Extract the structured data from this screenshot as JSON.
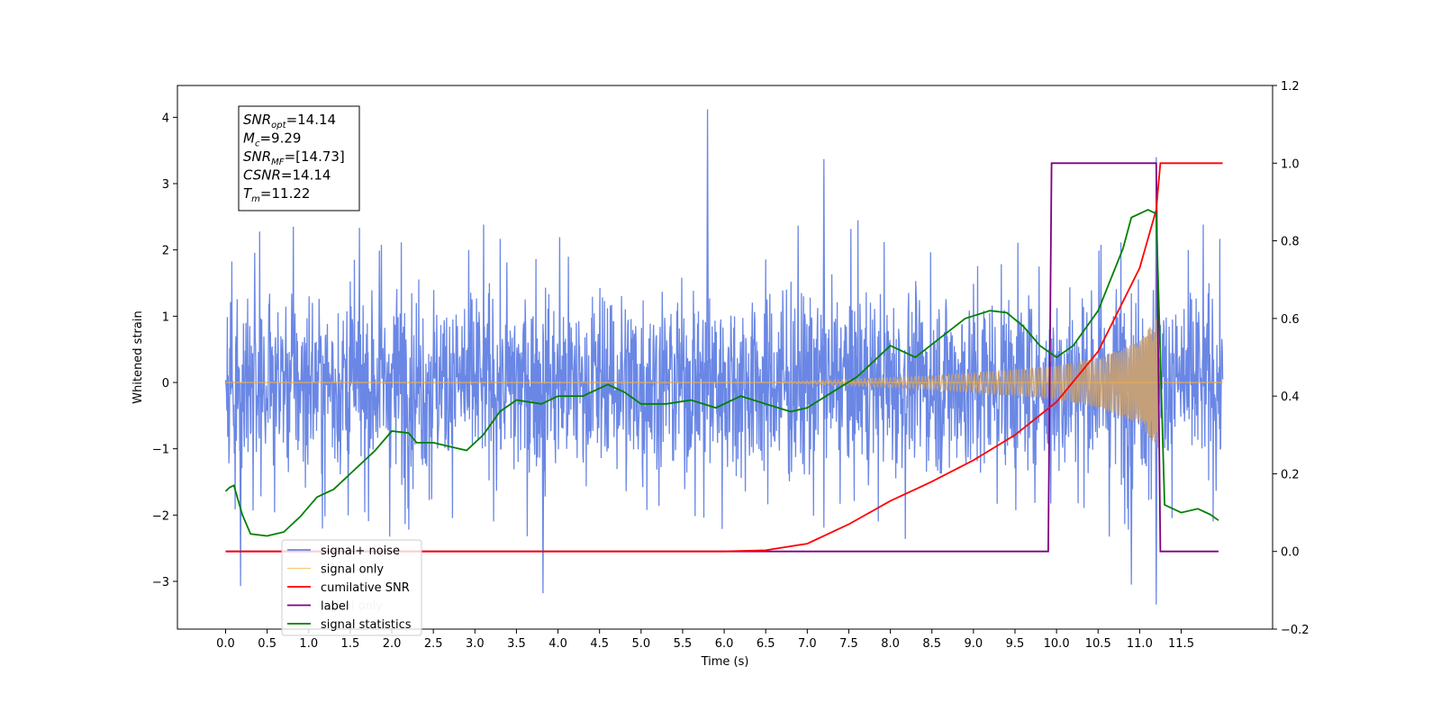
{
  "chart_data": {
    "type": "line",
    "xlabel": "Time (s)",
    "ylabel": "Whitened strain",
    "xlim": [
      -0.58,
      12.6
    ],
    "ylim": [
      -3.72,
      4.48
    ],
    "y2lim": [
      -0.2,
      1.2
    ],
    "xticks": [
      "0.0",
      "0.5",
      "1.0",
      "1.5",
      "2.0",
      "2.5",
      "3.0",
      "3.5",
      "4.0",
      "4.5",
      "5.0",
      "5.5",
      "6.0",
      "6.5",
      "7.0",
      "7.5",
      "8.0",
      "8.5",
      "9.0",
      "9.5",
      "10.0",
      "10.5",
      "11.0",
      "11.5"
    ],
    "yticks": [
      "−3",
      "−2",
      "−1",
      "0",
      "1",
      "2",
      "3",
      "4"
    ],
    "y2ticks": [
      "−0.2",
      "0.0",
      "0.2",
      "0.4",
      "0.6",
      "0.8",
      "1.0",
      "1.2"
    ],
    "annotation": {
      "lines": [
        {
          "base": "SNR",
          "sub": "opt",
          "value": "=14.14"
        },
        {
          "base": "M",
          "sub": "c",
          "value": "=9.29"
        },
        {
          "base": "SNR",
          "sub": "MF",
          "value": "=[14.73]"
        },
        {
          "base": "CSNR",
          "sub": "",
          "value": "=14.14"
        },
        {
          "base": "T",
          "sub": "m",
          "value": "=11.22"
        }
      ]
    },
    "legend": {
      "placement": "lower-left",
      "entries": [
        "signal+ noise",
        "signal only",
        "cumilative SNR",
        "label",
        "signal statistics"
      ],
      "ghost_text": "signal only"
    },
    "colors": {
      "noise": "#6a87e5",
      "signal": "#f5b041",
      "signal_fill": "#c4a07a",
      "csnr": "#ff0000",
      "label": "#800080",
      "stats": "#008000"
    },
    "series": [
      {
        "name": "signal+ noise",
        "axis": "left",
        "kind": "noise",
        "x_range": [
          0.0,
          12.0
        ],
        "sigma": 0.72,
        "spikes": [
          [
            5.8,
            4.12
          ],
          [
            11.2,
            -3.35
          ],
          [
            11.2,
            3.4
          ],
          [
            3.82,
            -3.18
          ],
          [
            10.9,
            -3.05
          ],
          [
            0.18,
            -3.07
          ],
          [
            7.2,
            3.37
          ]
        ]
      },
      {
        "name": "signal only",
        "axis": "left",
        "kind": "chirp",
        "x_range": [
          0.0,
          12.0
        ],
        "merger": 11.22,
        "envelope": [
          [
            6.5,
            0.0
          ],
          [
            7.5,
            0.05
          ],
          [
            8.5,
            0.1
          ],
          [
            9.5,
            0.2
          ],
          [
            10.0,
            0.25
          ],
          [
            10.5,
            0.38
          ],
          [
            11.0,
            0.62
          ],
          [
            11.22,
            1.0
          ],
          [
            11.26,
            0.0
          ]
        ]
      },
      {
        "name": "cumilative SNR",
        "axis": "right",
        "x": [
          0.0,
          6.0,
          6.5,
          7.0,
          7.5,
          8.0,
          8.5,
          9.0,
          9.5,
          10.0,
          10.5,
          11.0,
          11.2,
          11.25,
          12.0
        ],
        "values": [
          0.0,
          0.0,
          0.003,
          0.02,
          0.07,
          0.13,
          0.18,
          0.235,
          0.3,
          0.385,
          0.515,
          0.73,
          0.88,
          1.0,
          1.0
        ]
      },
      {
        "name": "label",
        "axis": "right",
        "x": [
          0.0,
          9.9,
          9.94,
          11.2,
          11.25,
          11.95
        ],
        "values": [
          0.0,
          0.0,
          1.0,
          1.0,
          0.0,
          0.0
        ]
      },
      {
        "name": "signal statistics",
        "axis": "right",
        "x": [
          0.0,
          0.05,
          0.1,
          0.2,
          0.3,
          0.5,
          0.7,
          0.9,
          1.1,
          1.3,
          1.5,
          1.8,
          2.0,
          2.2,
          2.3,
          2.5,
          2.7,
          2.9,
          3.1,
          3.3,
          3.5,
          3.8,
          4.0,
          4.3,
          4.6,
          4.8,
          5.0,
          5.3,
          5.6,
          5.9,
          6.2,
          6.5,
          6.8,
          7.0,
          7.3,
          7.6,
          8.0,
          8.3,
          8.6,
          8.9,
          9.2,
          9.4,
          9.6,
          9.8,
          10.0,
          10.2,
          10.5,
          10.8,
          10.9,
          11.1,
          11.2,
          11.3,
          11.5,
          11.7,
          11.85,
          11.95
        ],
        "values": [
          0.155,
          0.165,
          0.17,
          0.095,
          0.045,
          0.04,
          0.05,
          0.09,
          0.14,
          0.16,
          0.2,
          0.26,
          0.31,
          0.305,
          0.28,
          0.28,
          0.27,
          0.26,
          0.3,
          0.36,
          0.39,
          0.38,
          0.4,
          0.4,
          0.43,
          0.41,
          0.38,
          0.38,
          0.39,
          0.37,
          0.4,
          0.38,
          0.36,
          0.37,
          0.41,
          0.45,
          0.53,
          0.5,
          0.55,
          0.6,
          0.62,
          0.615,
          0.58,
          0.53,
          0.5,
          0.53,
          0.62,
          0.78,
          0.86,
          0.88,
          0.87,
          0.12,
          0.1,
          0.11,
          0.095,
          0.08
        ]
      }
    ]
  }
}
